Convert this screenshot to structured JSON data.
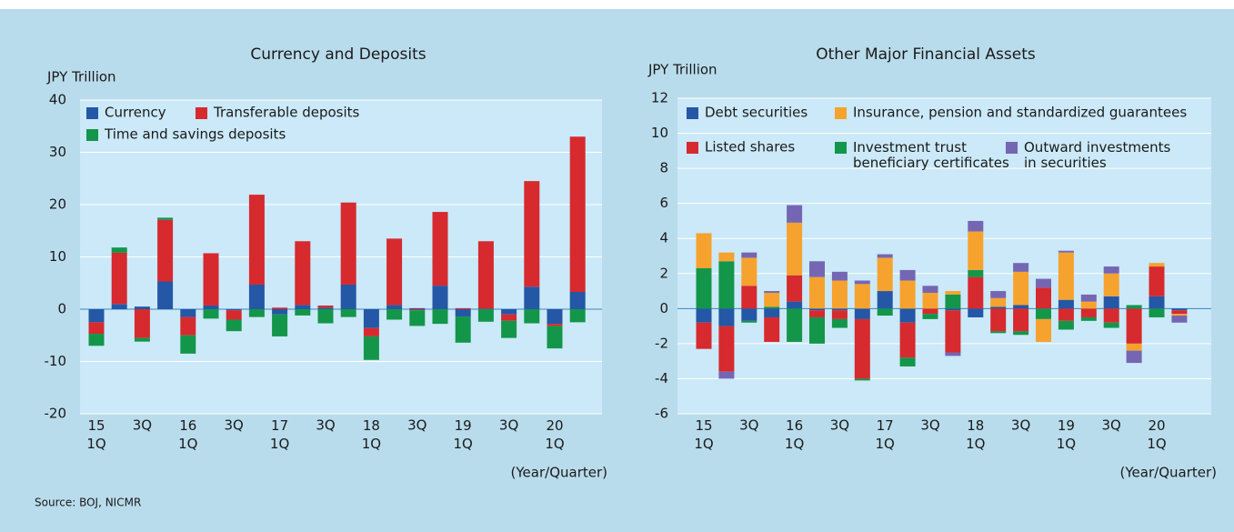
{
  "source": "Source: BOJ, NICMR",
  "chart_data": [
    {
      "type": "bar",
      "stacked": true,
      "title": "Currency and Deposits",
      "y_label": "JPY Trillion",
      "x_label": "(Year/Quarter)",
      "categories": [
        "15\n1Q",
        null,
        "3Q",
        null,
        "16\n1Q",
        null,
        "3Q",
        null,
        "17\n1Q",
        null,
        "3Q",
        null,
        "18\n1Q",
        null,
        "3Q",
        null,
        "19\n1Q",
        null,
        "3Q",
        null,
        "20\n1Q",
        null
      ],
      "ylim": [
        -20,
        40
      ],
      "yticks": [
        -20,
        -10,
        0,
        10,
        20,
        30,
        40
      ],
      "grid": true,
      "series": [
        {
          "name": "Currency",
          "color": "#2457a6",
          "values": [
            -2.5,
            1,
            0.5,
            5.3,
            -1.5,
            0.7,
            -0.2,
            4.7,
            -1,
            0.8,
            0.3,
            4.7,
            -3.6,
            0.8,
            0.2,
            4.5,
            -1.4,
            0.1,
            -1,
            4.3,
            -2.8,
            3.3
          ]
        },
        {
          "name": "Transferable deposits",
          "color": "#d62a2f",
          "values": [
            -2.2,
            9.8,
            -5.5,
            11.8,
            -3.5,
            10,
            -1.8,
            17.2,
            0.3,
            12.2,
            0.4,
            15.7,
            -1.6,
            12.7,
            -0.2,
            14.1,
            0.2,
            12.9,
            -1.2,
            20.2,
            -0.4,
            29.7
          ]
        },
        {
          "name": "Time and savings deposits",
          "color": "#13964a",
          "values": [
            -2.3,
            1,
            -0.7,
            0.4,
            -3.5,
            -1.8,
            -2.2,
            -1.5,
            -4.2,
            -1.2,
            -2.7,
            -1.5,
            -4.5,
            -2,
            -3,
            -2.8,
            -5,
            -2.4,
            -3.3,
            -2.7,
            -4.3,
            -2.5
          ]
        }
      ]
    },
    {
      "type": "bar",
      "stacked": true,
      "title": "Other Major Financial Assets",
      "y_label": "JPY Trillion",
      "x_label": "(Year/Quarter)",
      "categories": [
        "15\n1Q",
        null,
        "3Q",
        null,
        "16\n1Q",
        null,
        "3Q",
        null,
        "17\n1Q",
        null,
        "3Q",
        null,
        "18\n1Q",
        null,
        "3Q",
        null,
        "19\n1Q",
        null,
        "3Q",
        null,
        "20\n1Q",
        null
      ],
      "ylim": [
        -6,
        12
      ],
      "yticks": [
        -6,
        -4,
        -2,
        0,
        2,
        4,
        6,
        8,
        10,
        12
      ],
      "grid": true,
      "series": [
        {
          "name": "Debt securities",
          "color": "#2457a6",
          "values": [
            -0.8,
            -1,
            -0.7,
            -0.5,
            0.4,
            -0.1,
            -0.1,
            -0.6,
            1,
            -0.8,
            0,
            -0.1,
            -0.5,
            0.1,
            0.2,
            0,
            0.5,
            0,
            0.7,
            0,
            0.7,
            -0.1
          ]
        },
        {
          "name": "Listed shares",
          "color": "#d62a2f",
          "values": [
            -1.5,
            -2.6,
            1.3,
            -1.4,
            1.5,
            -0.4,
            -0.5,
            -3.4,
            0,
            -2,
            -0.3,
            -2.4,
            1.8,
            -1.3,
            -1.3,
            1.2,
            -0.7,
            -0.5,
            -0.8,
            -2,
            1.7,
            -0.2
          ]
        },
        {
          "name": "Investment trust\nbeneficiary certificates",
          "color": "#13964a",
          "values": [
            2.3,
            2.7,
            -0.1,
            0.1,
            -1.9,
            -1.5,
            -0.5,
            -0.1,
            -0.4,
            -0.5,
            -0.3,
            0.8,
            0.4,
            -0.1,
            -0.2,
            -0.6,
            -0.5,
            -0.2,
            -0.3,
            0.2,
            -0.5,
            0
          ]
        },
        {
          "name": "Insurance, pension and standardized guarantees",
          "color": "#f6a22e",
          "values": [
            2,
            0.5,
            1.6,
            0.8,
            3,
            1.8,
            1.6,
            1.4,
            1.9,
            1.6,
            0.9,
            0.2,
            2.2,
            0.5,
            1.9,
            -1.3,
            2.7,
            0.4,
            1.3,
            -0.4,
            0.2,
            -0.1
          ]
        },
        {
          "name": "Outward investments\nin securities",
          "color": "#7566b4",
          "values": [
            0,
            -0.4,
            0.3,
            0.1,
            1,
            0.9,
            0.5,
            0.2,
            0.2,
            0.6,
            0.4,
            -0.2,
            0.6,
            0.4,
            0.5,
            0.5,
            0.1,
            0.4,
            0.4,
            -0.7,
            0,
            -0.4
          ]
        }
      ]
    }
  ]
}
